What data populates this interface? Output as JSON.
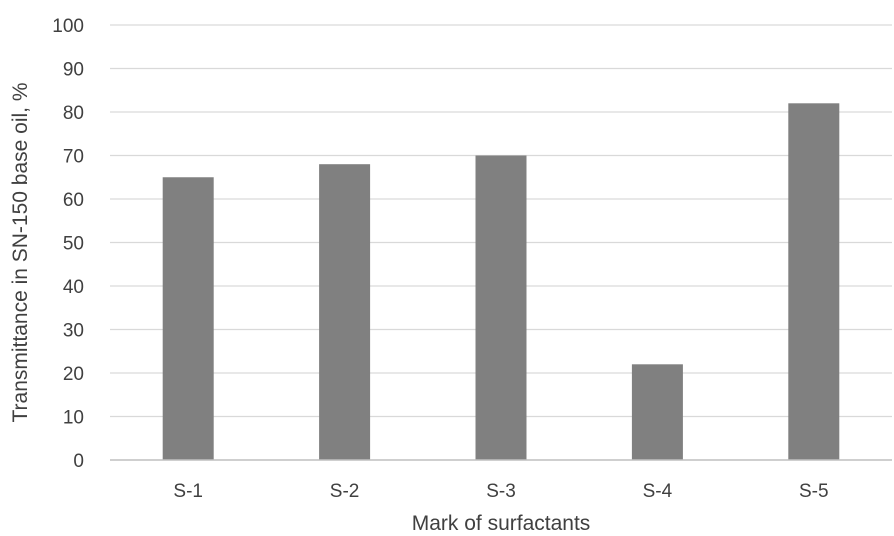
{
  "chart_data": {
    "type": "bar",
    "title": "",
    "xlabel": "Mark of surfactants",
    "ylabel": "Transmittance in SN-150 base oil, %",
    "categories": [
      "S-1",
      "S-2",
      "S-3",
      "S-4",
      "S-5"
    ],
    "series": [
      {
        "values": [
          65,
          68,
          70,
          22,
          82
        ]
      }
    ],
    "ylim": [
      0,
      100
    ],
    "yticks": [
      0,
      10,
      20,
      30,
      40,
      50,
      60,
      70,
      80,
      90,
      100
    ],
    "grid": true,
    "legend": "none",
    "colors": {
      "bar": "#808080",
      "grid": "#d9d9d9",
      "axis": "#bfbfbf",
      "text": "#404040"
    }
  }
}
